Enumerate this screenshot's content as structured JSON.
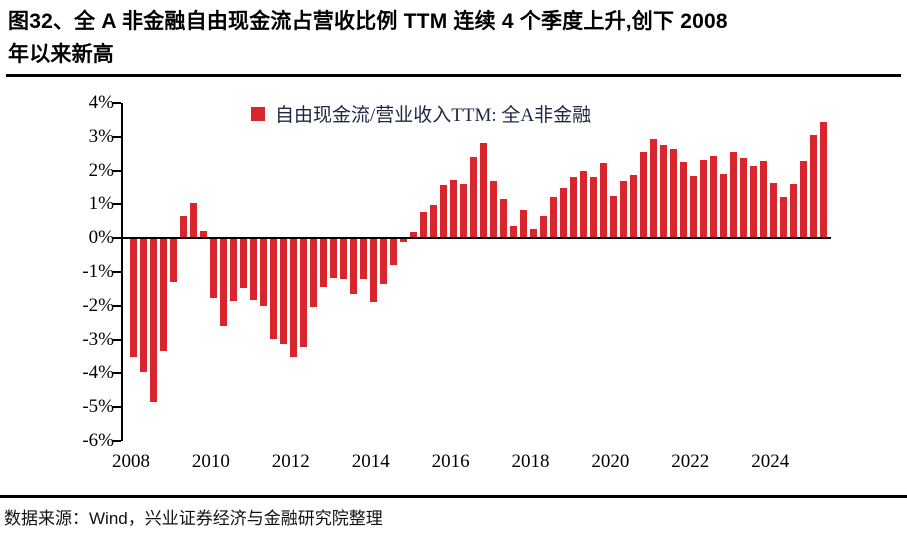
{
  "title": {
    "line1": "图32、全 A 非金融自由现金流占营收比例 TTM 连续 4 个季度上升,创下 2008",
    "line2": "年以来新高"
  },
  "source": {
    "text": "数据来源：Wind，兴业证券经济与金融研究院整理"
  },
  "chart_data": {
    "type": "bar",
    "legend": "自由现金流/营业收入TTM: 全A非金融",
    "bar_color": "#d9262c",
    "axis_color": "#000000",
    "ylim": [
      -6,
      4
    ],
    "ytick_labels": [
      "4%",
      "3%",
      "2%",
      "1%",
      "0%",
      "-1%",
      "-2%",
      "-3%",
      "-4%",
      "-5%",
      "-6%"
    ],
    "xtick_labels": [
      "2008",
      "2010",
      "2012",
      "2014",
      "2016",
      "2018",
      "2020",
      "2022",
      "2024"
    ],
    "grid": false,
    "legend_position": "top-center",
    "quarters": [
      "2008Q1",
      "2008Q2",
      "2008Q3",
      "2008Q4",
      "2009Q1",
      "2009Q2",
      "2009Q3",
      "2009Q4",
      "2010Q1",
      "2010Q2",
      "2010Q3",
      "2010Q4",
      "2011Q1",
      "2011Q2",
      "2011Q3",
      "2011Q4",
      "2012Q1",
      "2012Q2",
      "2012Q3",
      "2012Q4",
      "2013Q1",
      "2013Q2",
      "2013Q3",
      "2013Q4",
      "2014Q1",
      "2014Q2",
      "2014Q3",
      "2014Q4",
      "2015Q1",
      "2015Q2",
      "2015Q3",
      "2015Q4",
      "2016Q1",
      "2016Q2",
      "2016Q3",
      "2016Q4",
      "2017Q1",
      "2017Q2",
      "2017Q3",
      "2017Q4",
      "2018Q1",
      "2018Q2",
      "2018Q3",
      "2018Q4",
      "2019Q1",
      "2019Q2",
      "2019Q3",
      "2019Q4",
      "2020Q1",
      "2020Q2",
      "2020Q3",
      "2020Q4",
      "2021Q1",
      "2021Q2",
      "2021Q3",
      "2021Q4",
      "2022Q1",
      "2022Q2",
      "2022Q3",
      "2022Q4",
      "2023Q1",
      "2023Q2",
      "2023Q3",
      "2023Q4",
      "2024Q1",
      "2024Q2",
      "2024Q3",
      "2024Q4",
      "2025Q1",
      "2025Q2"
    ],
    "values": [
      -3.5,
      -3.93,
      -4.81,
      -3.3,
      -1.26,
      0.65,
      1.04,
      0.21,
      -1.75,
      -2.57,
      -1.84,
      -1.43,
      -1.8,
      -1.97,
      -2.94,
      -3.1,
      -3.5,
      -3.18,
      -2.02,
      -1.41,
      -1.15,
      -1.19,
      -1.63,
      -1.19,
      -1.85,
      -1.34,
      -0.76,
      -0.08,
      0.19,
      0.78,
      0.97,
      1.58,
      1.73,
      1.6,
      2.41,
      2.83,
      1.7,
      1.16,
      0.37,
      0.83,
      0.28,
      0.67,
      1.22,
      1.5,
      1.8,
      2.0,
      1.81,
      2.22,
      1.24,
      1.7,
      1.87,
      2.55,
      2.94,
      2.77,
      2.63,
      2.26,
      1.83,
      2.3,
      2.44,
      1.9,
      2.55,
      2.38,
      2.14,
      2.29,
      1.63,
      1.21,
      1.6,
      2.28,
      3.04,
      3.43
    ]
  }
}
